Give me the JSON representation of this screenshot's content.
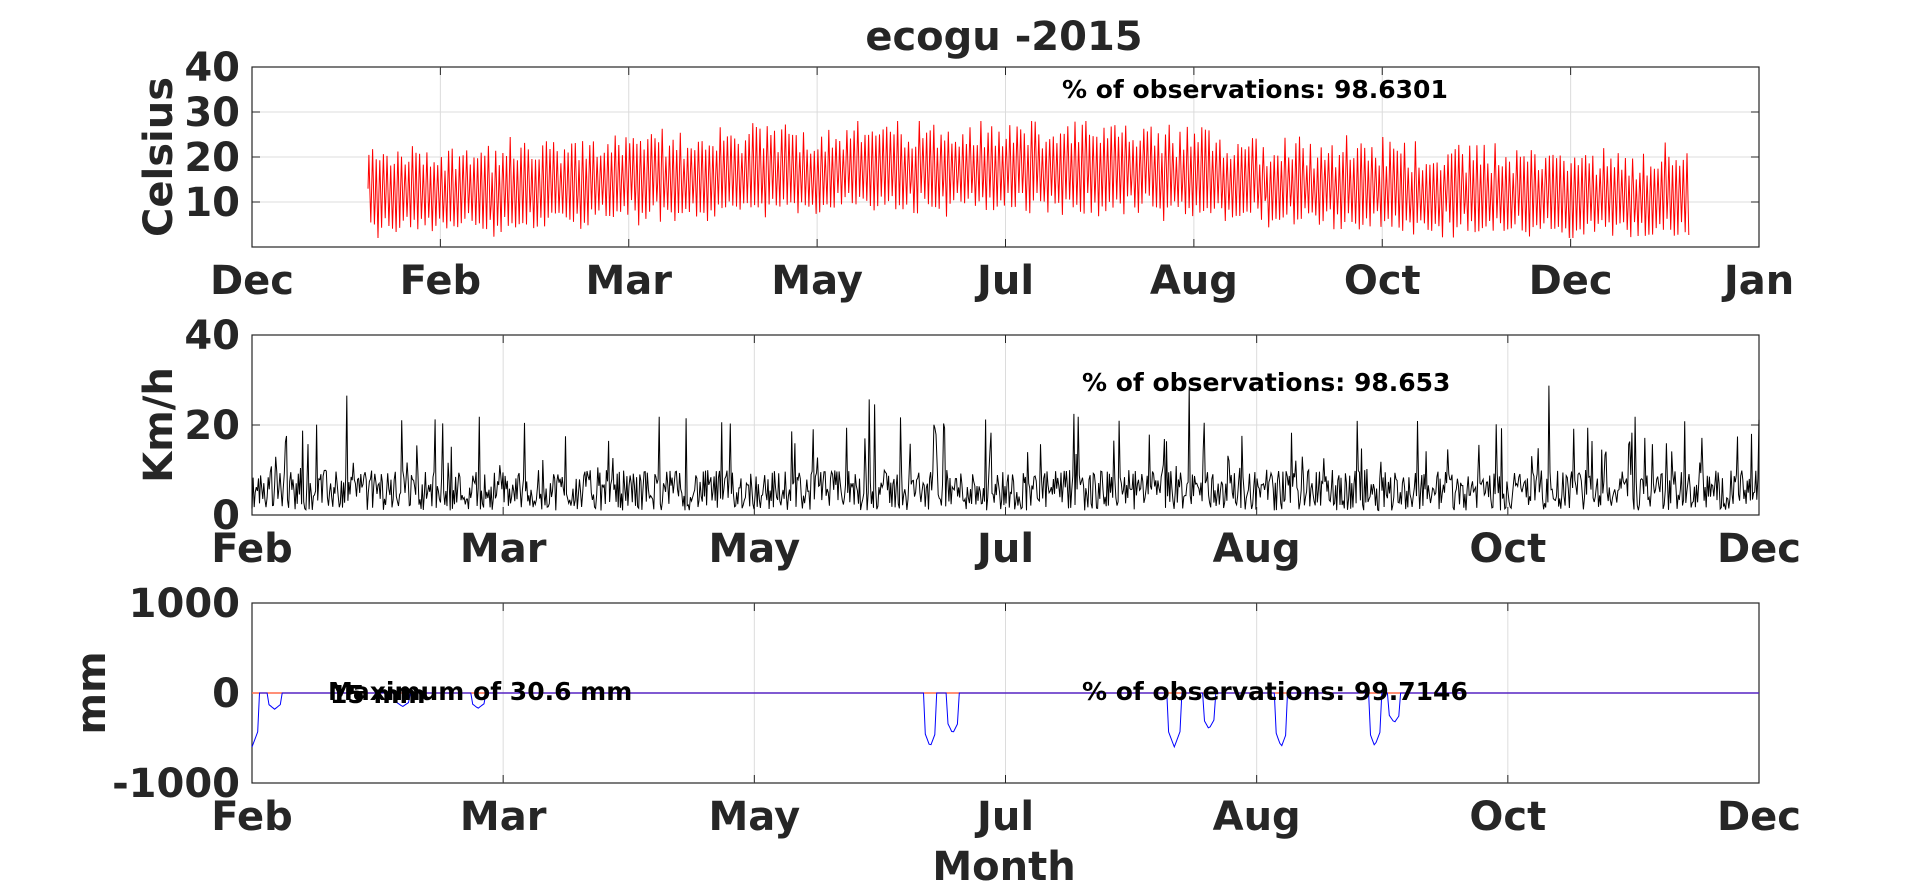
{
  "figure": {
    "title": "ecogu -2015",
    "colors": {
      "temperature": "#ff0000",
      "wind": "#000000",
      "rain": "#0000ff",
      "rain_zero": "#ff6a4a"
    }
  },
  "chart_data": [
    {
      "type": "line",
      "name": "temperature",
      "ylabel": "Celsius",
      "xlabel": "",
      "ylim": [
        0,
        40
      ],
      "yticks": [
        10,
        20,
        30,
        40
      ],
      "xticks": [
        "Dec",
        "Feb",
        "Mar",
        "May",
        "Jul",
        "Aug",
        "Oct",
        "Dec",
        "Jan"
      ],
      "x_range": [
        "2014-12-01",
        "2016-01-01"
      ],
      "data_range": [
        "2015-01-01",
        "2015-12-31"
      ],
      "annotation": "% of observations: 98.6301",
      "grid": true,
      "series": [
        {
          "sampling": "hourly",
          "daily_min_range": [
            2,
            12
          ],
          "daily_max_range": [
            14,
            28
          ],
          "peak_max": 28
        }
      ]
    },
    {
      "type": "line",
      "name": "wind",
      "ylabel": "Km/h",
      "xlabel": "",
      "ylim": [
        0,
        40
      ],
      "yticks": [
        0,
        20,
        40
      ],
      "xticks": [
        "Feb",
        "Mar",
        "May",
        "Jul",
        "Aug",
        "Oct",
        "Dec"
      ],
      "annotation": "% of observations: 98.653",
      "grid": true,
      "series": [
        {
          "sampling": "hourly",
          "typical_range": [
            1,
            10
          ],
          "peak_max": 29
        }
      ]
    },
    {
      "type": "line",
      "name": "rain",
      "ylabel": "mm",
      "xlabel": "Month",
      "ylim": [
        -1000,
        1000
      ],
      "yticks": [
        -1000,
        0,
        1000
      ],
      "xticks": [
        "Feb",
        "Mar",
        "May",
        "Jul",
        "Aug",
        "Oct",
        "Dec"
      ],
      "annotations": [
        "Maximum of 30.6 mm",
        "15 mm",
        "% of observations: 99.7146"
      ],
      "grid": true,
      "series": [
        {
          "sampling": "hourly",
          "baseline": 0,
          "negative_dips": [
            {
              "x": 0.0,
              "y": -600
            },
            {
              "x": 0.015,
              "y": -180
            },
            {
              "x": 0.1,
              "y": -150
            },
            {
              "x": 0.15,
              "y": -170
            },
            {
              "x": 0.45,
              "y": -600
            },
            {
              "x": 0.465,
              "y": -450
            },
            {
              "x": 0.612,
              "y": -600
            },
            {
              "x": 0.635,
              "y": -400
            },
            {
              "x": 0.683,
              "y": -600
            },
            {
              "x": 0.745,
              "y": -590
            },
            {
              "x": 0.758,
              "y": -330
            }
          ]
        }
      ]
    }
  ]
}
